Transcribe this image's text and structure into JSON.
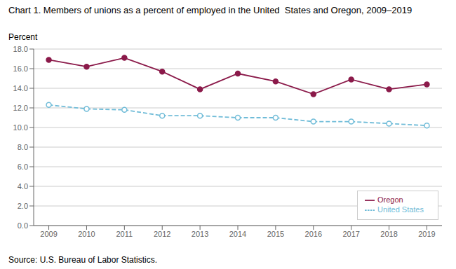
{
  "chart_data": {
    "type": "line",
    "title": "Chart 1. Members of unions as a percent of employed in the United  States and Oregon, 2009–2019",
    "y_label": "Percent",
    "source": "Source: U.S. Bureau of Labor Statistics.",
    "x": [
      2009,
      2010,
      2011,
      2012,
      2013,
      2014,
      2015,
      2016,
      2017,
      2018,
      2019
    ],
    "series": [
      {
        "name": "United States",
        "color": "#70bcd8",
        "marker": "open_circle",
        "line_style": "dashed",
        "values": [
          12.3,
          11.9,
          11.8,
          11.2,
          11.2,
          11.0,
          11.0,
          10.6,
          10.6,
          10.4,
          10.2
        ]
      },
      {
        "name": "Oregon",
        "color": "#8b1a4a",
        "marker": "circle",
        "line_style": "solid",
        "values": [
          16.9,
          16.2,
          17.1,
          15.7,
          13.9,
          15.5,
          14.7,
          13.4,
          14.9,
          13.9,
          14.4
        ]
      }
    ],
    "xlim": [
      2008.6,
      2019.4
    ],
    "xticks": [
      2009,
      2010,
      2011,
      2012,
      2013,
      2014,
      2015,
      2016,
      2017,
      2018,
      2019
    ],
    "ylim": [
      0.0,
      18.0
    ],
    "yticks": [
      {
        "value": 0.0,
        "label": "0.0"
      },
      {
        "value": 2.0,
        "label": "2.0"
      },
      {
        "value": 4.0,
        "label": "4.0"
      },
      {
        "value": 6.0,
        "label": "6.0"
      },
      {
        "value": 8.0,
        "label": "8.0"
      },
      {
        "value": 10.0,
        "label": "10.0"
      },
      {
        "value": 12.0,
        "label": "12.0"
      },
      {
        "value": 14.0,
        "label": "14.0"
      },
      {
        "value": 16.0,
        "label": "16.0"
      },
      {
        "value": 18.0,
        "label": "18.0"
      }
    ],
    "grid": "y",
    "legend": "lower right"
  }
}
